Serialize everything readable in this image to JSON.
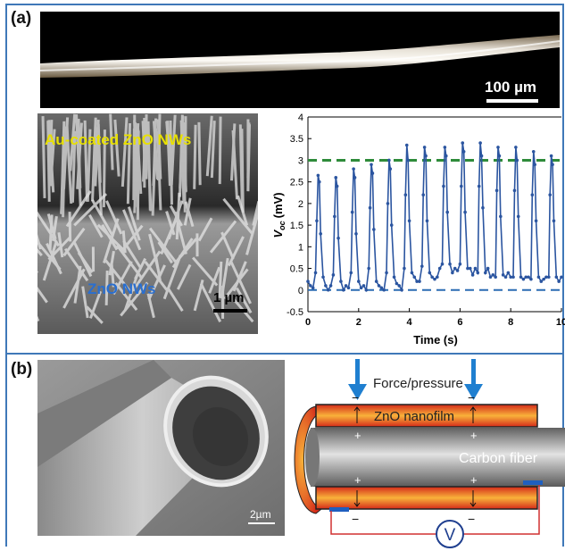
{
  "panels": {
    "a": {
      "label": "(a)",
      "optical": {
        "scale_bar": "100 µm"
      },
      "sem": {
        "top_label": "Au-coated ZnO NWs",
        "bottom_label": "ZnO NWs",
        "scale_bar": "1 µm"
      }
    },
    "b": {
      "label": "(b)",
      "sem": {
        "scale_bar": "2µm"
      },
      "schematic": {
        "force_label": "Force/pressure",
        "film_label": "ZnO nanofilm",
        "core_label": "Carbon fiber",
        "meter_symbol": "V",
        "plus": "+",
        "minus": "−"
      }
    }
  },
  "chart_data": {
    "type": "line",
    "xlabel": "Time (s)",
    "ylabel": "V",
    "ylabel_sub": "oc",
    "ylabel_unit": "(mV)",
    "xlim": [
      0,
      10
    ],
    "ylim": [
      -0.5,
      4
    ],
    "xticks": [
      0,
      2,
      4,
      6,
      8,
      10
    ],
    "yticks": [
      -0.5,
      0,
      0.5,
      1,
      1.5,
      2,
      2.5,
      3,
      3.5,
      4
    ],
    "reference_lines": [
      {
        "y": 3.0,
        "color": "#2e8b3a"
      },
      {
        "y": 0.0,
        "color": "#2b6cb3"
      }
    ],
    "series_color": "#2b55a0",
    "x": [
      0.0,
      0.1,
      0.2,
      0.3,
      0.35,
      0.4,
      0.45,
      0.5,
      0.6,
      0.7,
      0.8,
      0.9,
      1.0,
      1.05,
      1.1,
      1.15,
      1.2,
      1.3,
      1.4,
      1.5,
      1.6,
      1.7,
      1.75,
      1.8,
      1.85,
      1.9,
      2.0,
      2.1,
      2.2,
      2.3,
      2.4,
      2.45,
      2.5,
      2.55,
      2.6,
      2.7,
      2.8,
      2.9,
      3.0,
      3.1,
      3.15,
      3.2,
      3.25,
      3.3,
      3.4,
      3.5,
      3.6,
      3.7,
      3.8,
      3.85,
      3.9,
      3.95,
      4.0,
      4.1,
      4.2,
      4.3,
      4.4,
      4.5,
      4.55,
      4.6,
      4.65,
      4.7,
      4.8,
      4.9,
      5.0,
      5.1,
      5.2,
      5.3,
      5.35,
      5.4,
      5.45,
      5.5,
      5.6,
      5.7,
      5.8,
      5.9,
      6.0,
      6.05,
      6.1,
      6.15,
      6.2,
      6.3,
      6.4,
      6.5,
      6.6,
      6.7,
      6.75,
      6.8,
      6.85,
      6.9,
      7.0,
      7.1,
      7.2,
      7.3,
      7.4,
      7.45,
      7.5,
      7.55,
      7.6,
      7.7,
      7.8,
      7.9,
      8.0,
      8.1,
      8.15,
      8.2,
      8.25,
      8.3,
      8.4,
      8.5,
      8.6,
      8.7,
      8.8,
      8.85,
      8.9,
      8.95,
      9.0,
      9.1,
      9.2,
      9.3,
      9.4,
      9.5,
      9.55,
      9.6,
      9.65,
      9.7,
      9.8,
      9.9,
      10.0
    ],
    "y": [
      0.2,
      0.1,
      0.05,
      0.4,
      1.6,
      2.65,
      2.5,
      1.3,
      0.3,
      0.1,
      0.0,
      0.1,
      0.35,
      1.7,
      2.6,
      2.4,
      1.2,
      0.2,
      0.0,
      0.1,
      0.05,
      0.4,
      1.8,
      2.8,
      2.6,
      1.3,
      0.2,
      0.05,
      0.1,
      0.0,
      0.5,
      1.9,
      2.9,
      2.7,
      1.4,
      0.2,
      0.1,
      0.05,
      0.0,
      0.4,
      2.0,
      3.0,
      2.8,
      1.5,
      0.3,
      0.15,
      0.1,
      0.0,
      0.5,
      2.2,
      3.35,
      3.0,
      1.6,
      0.4,
      0.3,
      0.2,
      0.2,
      0.55,
      2.2,
      3.3,
      3.1,
      1.6,
      0.4,
      0.3,
      0.25,
      0.3,
      0.5,
      0.6,
      2.4,
      3.3,
      3.1,
      1.8,
      0.6,
      0.4,
      0.5,
      0.45,
      0.6,
      2.4,
      3.4,
      3.2,
      1.8,
      0.5,
      0.5,
      0.35,
      0.5,
      0.4,
      2.4,
      3.4,
      3.1,
      1.9,
      0.4,
      0.5,
      0.3,
      0.35,
      0.3,
      2.3,
      3.3,
      3.1,
      1.7,
      0.35,
      0.3,
      0.4,
      0.3,
      0.3,
      2.3,
      3.3,
      3.0,
      1.7,
      0.3,
      0.25,
      0.3,
      0.3,
      0.25,
      2.2,
      3.2,
      2.9,
      1.6,
      0.3,
      0.2,
      0.25,
      0.3,
      0.3,
      2.2,
      3.1,
      2.9,
      1.6,
      0.3,
      0.2,
      0.3
    ]
  }
}
